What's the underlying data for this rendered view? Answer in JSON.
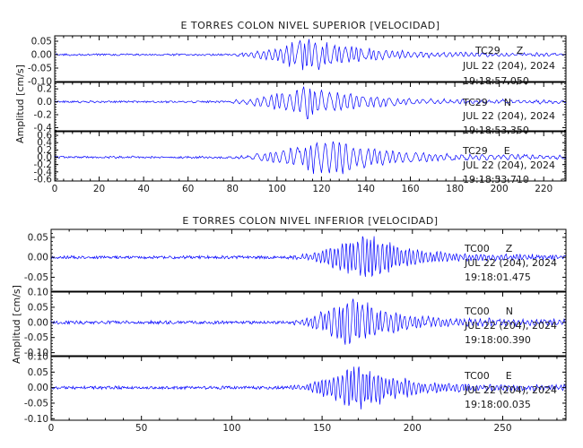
{
  "chart_data": [
    {
      "type": "line",
      "title": "E TORRES COLON NIVEL SUPERIOR [VELOCIDAD]",
      "ylabel": "Amplitud [cm/s]",
      "xlabel": "",
      "xlim": [
        0,
        230
      ],
      "xticks": [
        "0",
        "20",
        "40",
        "60",
        "80",
        "100",
        "120",
        "140",
        "160",
        "180",
        "200",
        "220"
      ],
      "trace_color": "#0000ff",
      "series": [
        {
          "station": "TC29",
          "component": "Z",
          "date": "JUL 22 (204), 2024",
          "time": "19:18:57.050",
          "ylim": [
            -0.1,
            0.07
          ],
          "yticks": [
            "0.05",
            "0.00",
            "-0.05",
            "-0.10"
          ],
          "envelope": {
            "onset_s": 78,
            "peak_s": 115,
            "peak_amplitude": 0.07,
            "end_s": 230,
            "period_s": 2.6
          }
        },
        {
          "station": "TC29",
          "component": "N",
          "date": "JUL 22 (204), 2024",
          "time": "19:18:53.350",
          "ylim": [
            -0.45,
            0.3
          ],
          "yticks": [
            "0.2",
            "0.0",
            "-0.2",
            "-0.4"
          ],
          "envelope": {
            "onset_s": 78,
            "peak_s": 113,
            "peak_amplitude": 0.3,
            "end_s": 230,
            "period_s": 3.0
          }
        },
        {
          "station": "TC29",
          "component": "E",
          "date": "JUL 22 (204), 2024",
          "time": "19:18:53.710",
          "ylim": [
            -0.65,
            0.7
          ],
          "yticks": [
            "0.6",
            "0.4",
            "0.2",
            "0.0",
            "-0.2",
            "-0.4",
            "-0.6"
          ],
          "envelope": {
            "onset_s": 80,
            "peak_s": 125,
            "peak_amplitude": 0.6,
            "end_s": 230,
            "period_s": 3.1
          }
        }
      ]
    },
    {
      "type": "line",
      "title": "E TORRES COLON NIVEL INFERIOR [VELOCIDAD]",
      "ylabel": "Amplitud [cm/s]",
      "xlabel": "",
      "xlim": [
        0,
        285
      ],
      "xticks": [
        "0",
        "50",
        "100",
        "150",
        "200",
        "250"
      ],
      "trace_color": "#0000ff",
      "series": [
        {
          "station": "TC00",
          "component": "Z",
          "date": "JUL 22 (204), 2024",
          "time": "19:18:01.475",
          "ylim": [
            -0.085,
            0.07
          ],
          "yticks": [
            "0.05",
            "0.00",
            "-0.05"
          ],
          "envelope": {
            "onset_s": 132,
            "peak_s": 173,
            "peak_amplitude": 0.07,
            "end_s": 285,
            "period_s": 2.2
          }
        },
        {
          "station": "TC00",
          "component": "N",
          "date": "JUL 22 (204), 2024",
          "time": "19:18:00.390",
          "ylim": [
            -0.11,
            0.1
          ],
          "yticks": [
            "0.10",
            "0.05",
            "0.00",
            "-0.05",
            "-0.10"
          ],
          "envelope": {
            "onset_s": 132,
            "peak_s": 165,
            "peak_amplitude": 0.1,
            "end_s": 285,
            "period_s": 2.6
          }
        },
        {
          "station": "TC00",
          "component": "E",
          "date": "JUL 22 (204), 2024",
          "time": "19:18:00.035",
          "ylim": [
            -0.105,
            0.1
          ],
          "yticks": [
            "0.10",
            "0.05",
            "0.00",
            "-0.05",
            "-0.10"
          ],
          "envelope": {
            "onset_s": 132,
            "peak_s": 170,
            "peak_amplitude": 0.09,
            "end_s": 285,
            "period_s": 2.2
          }
        }
      ]
    }
  ]
}
